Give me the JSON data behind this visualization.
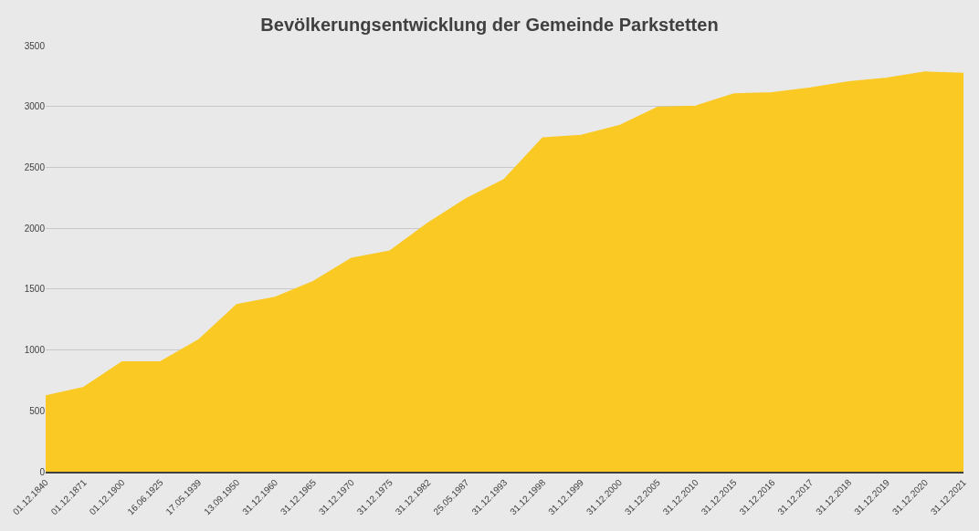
{
  "chart_data": {
    "type": "area",
    "title": "Bevölkerungsentwicklung der Gemeinde Parkstetten",
    "categories": [
      "01.12.1840",
      "01.12.1871",
      "01.12.1900",
      "16.06.1925",
      "17.05.1939",
      "13.09.1950",
      "31.12.1960",
      "31.12.1965",
      "31.12.1970",
      "31.12.1975",
      "31.12.1982",
      "25.05.1987",
      "31.12.1993",
      "31.12.1998",
      "31.12.1999",
      "31.12.2000",
      "31.12.2005",
      "31.12.2010",
      "31.12.2015",
      "31.12.2016",
      "31.12.2017",
      "31.12.2018",
      "31.12.2019",
      "31.12.2020",
      "31.12.2021"
    ],
    "series": [
      {
        "color": "#fac924",
        "values": [
          620,
          690,
          900,
          900,
          1080,
          1370,
          1430,
          1560,
          1750,
          1810,
          2040,
          2240,
          2400,
          2740,
          2760,
          2840,
          2990,
          3000,
          3100,
          3110,
          3150,
          3200,
          3230,
          3280,
          3270
        ]
      }
    ],
    "ylim": [
      0,
      3500
    ],
    "yticks": [
      0,
      500,
      1000,
      1500,
      2000,
      2500,
      3000,
      3500
    ],
    "grid": "y"
  }
}
